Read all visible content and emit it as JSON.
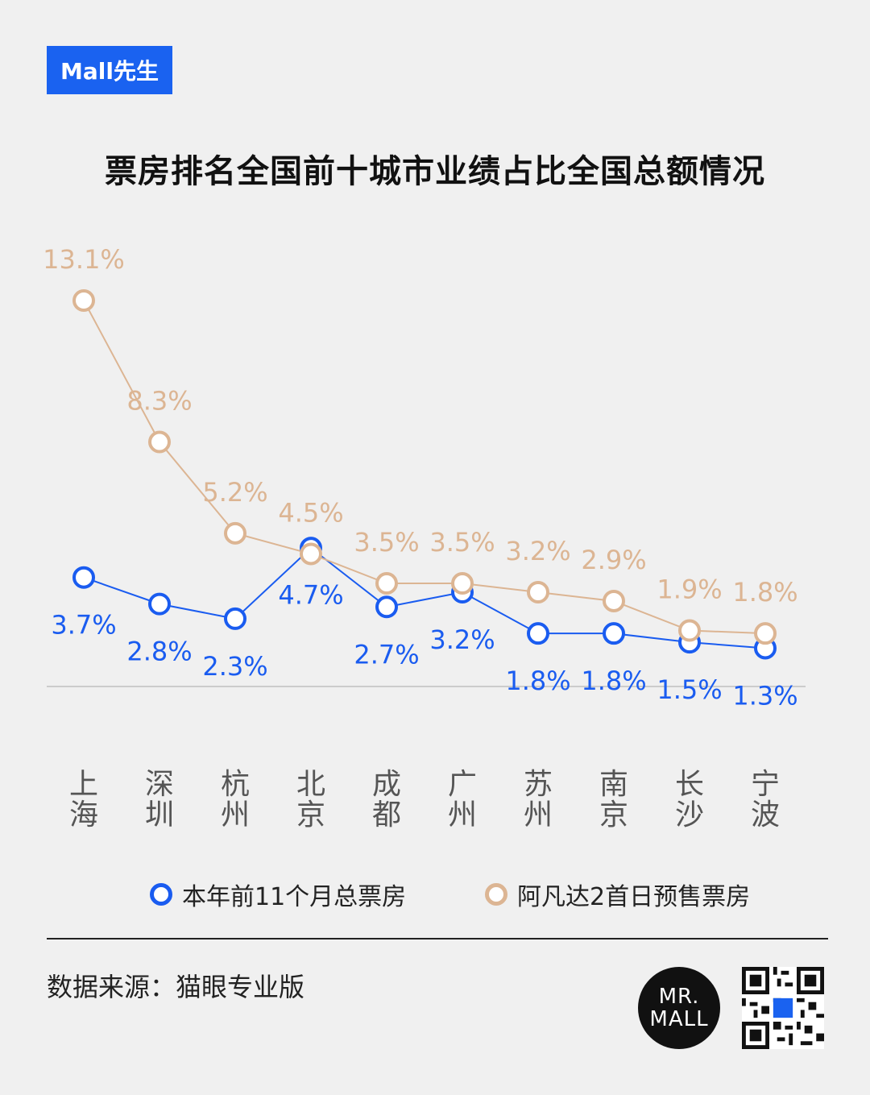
{
  "brand": "Mall先生",
  "title": "票房排名全国前十城市业绩占比全国总额情况",
  "source": "数据来源：猫眼专业版",
  "logo_line1": "MR.",
  "logo_line2": "MALL",
  "colors": {
    "blue": "#1a5cf0",
    "orange": "#dcb593",
    "title": "#111111"
  },
  "chart_data": {
    "type": "line",
    "categories": [
      "上海",
      "深圳",
      "杭州",
      "北京",
      "成都",
      "广州",
      "苏州",
      "南京",
      "长沙",
      "宁波"
    ],
    "series": [
      {
        "name": "本年前11个月总票房",
        "color": "#1a5cf0",
        "values": [
          3.7,
          2.8,
          2.3,
          4.7,
          2.7,
          3.2,
          1.8,
          1.8,
          1.5,
          1.3
        ],
        "labels": [
          "3.7%",
          "2.8%",
          "2.3%",
          "4.7%",
          "2.7%",
          "3.2%",
          "1.8%",
          "1.8%",
          "1.5%",
          "1.3%"
        ]
      },
      {
        "name": "阿凡达2首日预售票房",
        "color": "#dcb593",
        "values": [
          13.1,
          8.3,
          5.2,
          4.5,
          3.5,
          3.5,
          3.2,
          2.9,
          1.9,
          1.8
        ],
        "labels": [
          "13.1%",
          "8.3%",
          "5.2%",
          "4.5%",
          "3.5%",
          "3.5%",
          "3.2%",
          "2.9%",
          "1.9%",
          "1.8%"
        ]
      }
    ],
    "ylim": [
      0,
      13.1
    ],
    "grid": false,
    "legend": "bottom"
  }
}
